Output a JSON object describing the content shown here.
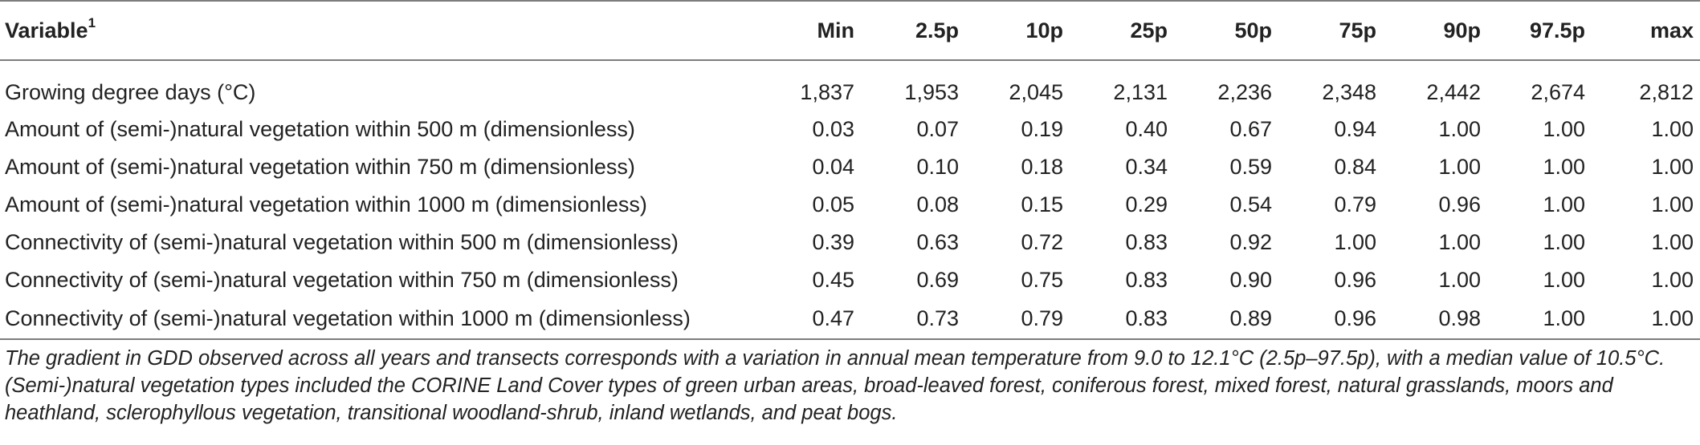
{
  "table": {
    "headers": {
      "variable": "Variable",
      "variable_sup": "1",
      "cols": [
        "Min",
        "2.5p",
        "10p",
        "25p",
        "50p",
        "75p",
        "90p",
        "97.5p",
        "max"
      ]
    },
    "rows": [
      {
        "label": "Growing degree days (°C)",
        "values": [
          "1,837",
          "1,953",
          "2,045",
          "2,131",
          "2,236",
          "2,348",
          "2,442",
          "2,674",
          "2,812"
        ]
      },
      {
        "label": "Amount of (semi-)natural vegetation within 500 m (dimensionless)",
        "values": [
          "0.03",
          "0.07",
          "0.19",
          "0.40",
          "0.67",
          "0.94",
          "1.00",
          "1.00",
          "1.00"
        ]
      },
      {
        "label": "Amount of (semi-)natural vegetation within 750 m (dimensionless)",
        "values": [
          "0.04",
          "0.10",
          "0.18",
          "0.34",
          "0.59",
          "0.84",
          "1.00",
          "1.00",
          "1.00"
        ]
      },
      {
        "label": "Amount of (semi-)natural vegetation within 1000 m (dimensionless)",
        "values": [
          "0.05",
          "0.08",
          "0.15",
          "0.29",
          "0.54",
          "0.79",
          "0.96",
          "1.00",
          "1.00"
        ]
      },
      {
        "label": "Connectivity of (semi-)natural vegetation within 500 m (dimensionless)",
        "values": [
          "0.39",
          "0.63",
          "0.72",
          "0.83",
          "0.92",
          "1.00",
          "1.00",
          "1.00",
          "1.00"
        ]
      },
      {
        "label": "Connectivity of (semi-)natural vegetation within 750 m (dimensionless)",
        "values": [
          "0.45",
          "0.69",
          "0.75",
          "0.83",
          "0.90",
          "0.96",
          "1.00",
          "1.00",
          "1.00"
        ]
      },
      {
        "label": "Connectivity of (semi-)natural vegetation within 1000 m (dimensionless)",
        "values": [
          "0.47",
          "0.73",
          "0.79",
          "0.83",
          "0.89",
          "0.96",
          "0.98",
          "1.00",
          "1.00"
        ]
      }
    ]
  },
  "footnote": "The gradient in GDD observed across all years and transects corresponds with a variation in annual mean temperature from 9.0 to 12.1°C (2.5p–97.5p), with a median value of 10.5°C. (Semi-)natural vegetation types included the CORINE Land Cover types of green urban areas, broad-leaved forest, coniferous forest, mixed forest, natural grasslands, moors and heathland, sclerophyllous vegetation, transitional woodland-shrub, inland wetlands, and peat bogs."
}
